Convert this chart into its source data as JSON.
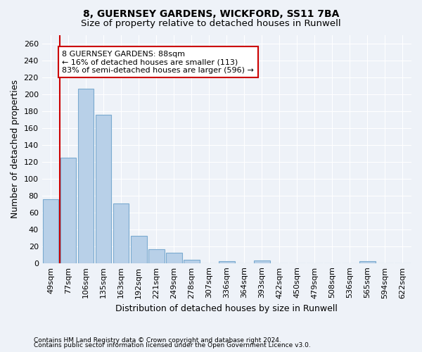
{
  "title1": "8, GUERNSEY GARDENS, WICKFORD, SS11 7BA",
  "title2": "Size of property relative to detached houses in Runwell",
  "xlabel": "Distribution of detached houses by size in Runwell",
  "ylabel": "Number of detached properties",
  "categories": [
    "49sqm",
    "77sqm",
    "106sqm",
    "135sqm",
    "163sqm",
    "192sqm",
    "221sqm",
    "249sqm",
    "278sqm",
    "307sqm",
    "336sqm",
    "364sqm",
    "393sqm",
    "422sqm",
    "450sqm",
    "479sqm",
    "508sqm",
    "536sqm",
    "565sqm",
    "594sqm",
    "622sqm"
  ],
  "values": [
    76,
    125,
    207,
    176,
    71,
    32,
    16,
    12,
    4,
    0,
    2,
    0,
    3,
    0,
    0,
    0,
    0,
    0,
    2,
    0,
    0
  ],
  "bar_color": "#b8d0e8",
  "bar_edge_color": "#7aaad0",
  "vline_x_index": 0.5,
  "vline_color": "#cc0000",
  "annotation_text": "8 GUERNSEY GARDENS: 88sqm\n← 16% of detached houses are smaller (113)\n83% of semi-detached houses are larger (596) →",
  "annotation_box_color": "white",
  "annotation_box_edge": "#cc0000",
  "ylim": [
    0,
    270
  ],
  "yticks": [
    0,
    20,
    40,
    60,
    80,
    100,
    120,
    140,
    160,
    180,
    200,
    220,
    240,
    260
  ],
  "footnote1": "Contains HM Land Registry data © Crown copyright and database right 2024.",
  "footnote2": "Contains public sector information licensed under the Open Government Licence v3.0.",
  "background_color": "#eef2f8",
  "grid_color": "white",
  "title1_fontsize": 10,
  "title2_fontsize": 9.5,
  "xlabel_fontsize": 9,
  "ylabel_fontsize": 9,
  "tick_fontsize": 8,
  "annotation_fontsize": 8,
  "footnote_fontsize": 6.5
}
